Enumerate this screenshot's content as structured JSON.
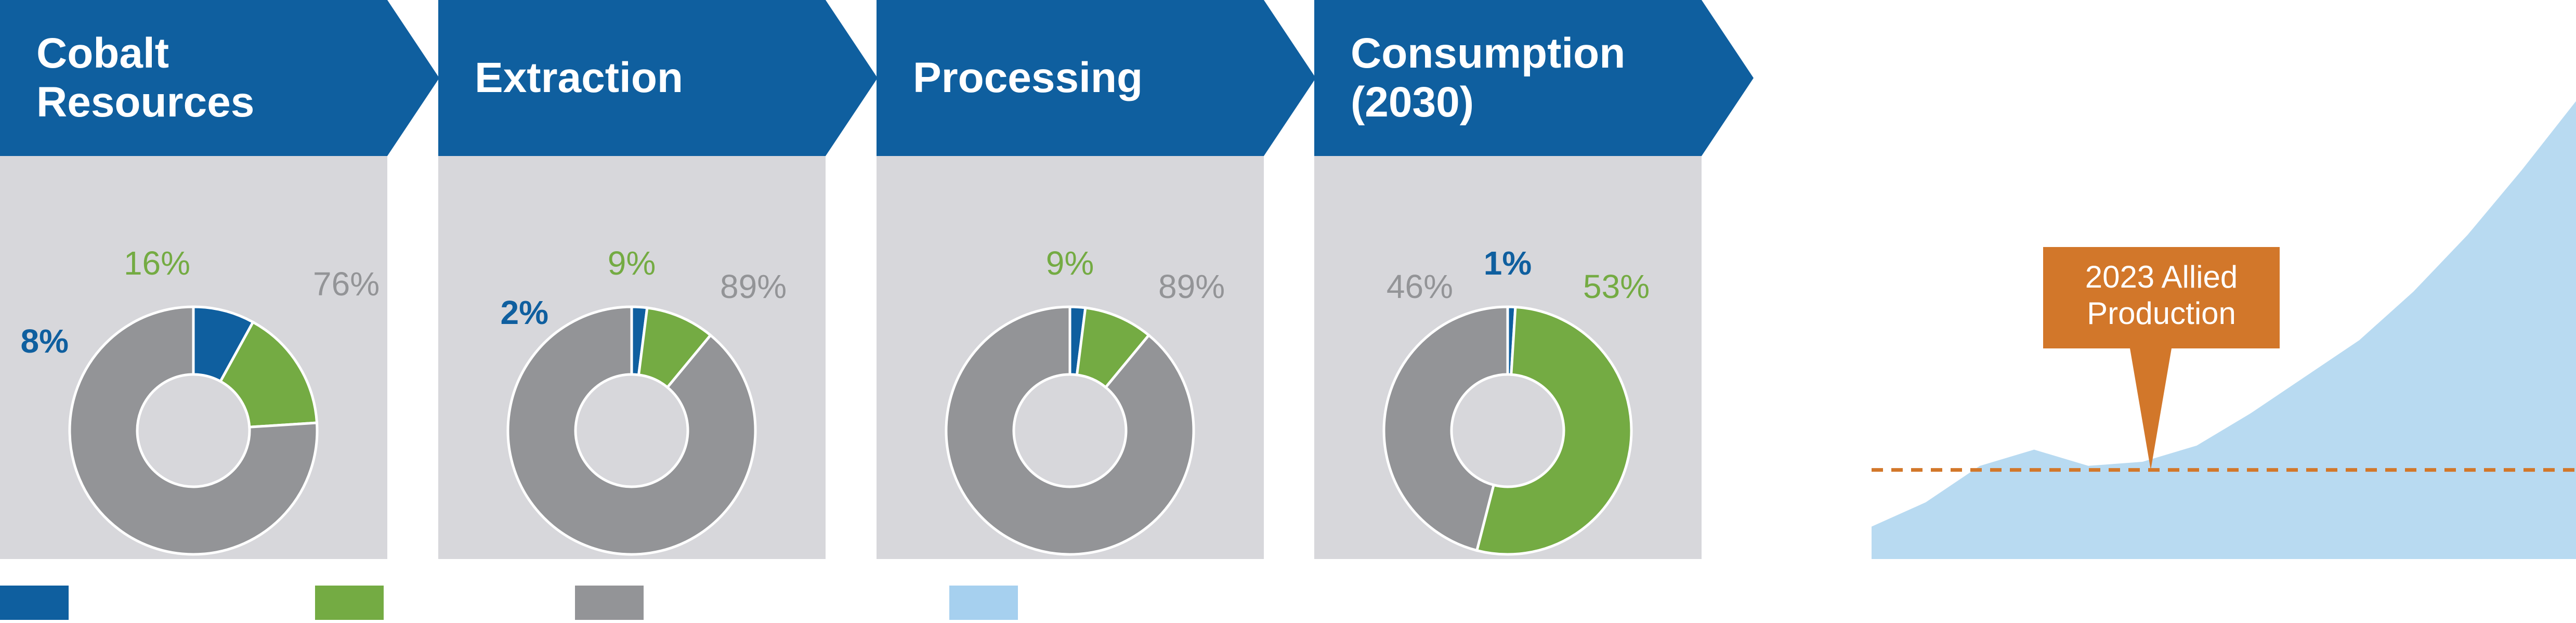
{
  "colors": {
    "header_blue": "#0f5f9f",
    "panel_gray": "#d7d7db",
    "donut_blue": "#0f5f9f",
    "donut_green": "#74ab43",
    "donut_gray": "#939497",
    "area_light_blue": "#b8daf1",
    "callout_orange": "#d2772a"
  },
  "chart_data": [
    {
      "type": "pie",
      "title": "Cobalt\nResources",
      "series": [
        {
          "label": "8%",
          "value": 8,
          "color": "#0f5f9f"
        },
        {
          "label": "16%",
          "value": 16,
          "color": "#74ab43"
        },
        {
          "label": "76%",
          "value": 76,
          "color": "#939497"
        }
      ]
    },
    {
      "type": "pie",
      "title": "Extraction",
      "series": [
        {
          "label": "2%",
          "value": 2,
          "color": "#0f5f9f"
        },
        {
          "label": "9%",
          "value": 9,
          "color": "#74ab43"
        },
        {
          "label": "89%",
          "value": 89,
          "color": "#939497"
        }
      ]
    },
    {
      "type": "pie",
      "title": "Processing",
      "series": [
        {
          "label": "",
          "value": 2,
          "color": "#0f5f9f"
        },
        {
          "label": "9%",
          "value": 9,
          "color": "#74ab43"
        },
        {
          "label": "89%",
          "value": 89,
          "color": "#939497"
        }
      ]
    },
    {
      "type": "pie",
      "title": "Consumption\n(2030)",
      "series": [
        {
          "label": "1%",
          "value": 1,
          "color": "#0f5f9f"
        },
        {
          "label": "53%",
          "value": 53,
          "color": "#74ab43"
        },
        {
          "label": "46%",
          "value": 46,
          "color": "#939497"
        }
      ]
    },
    {
      "type": "area",
      "x": [
        0,
        1,
        2,
        3,
        4,
        5,
        6,
        7,
        8,
        9,
        10,
        11,
        12,
        13
      ],
      "values": [
        8,
        14,
        23,
        27,
        23,
        24,
        28,
        36,
        45,
        54,
        66,
        80,
        96,
        113
      ],
      "ylim": [
        0,
        120
      ],
      "reference_line": {
        "value": 22,
        "label": "2023 Allied\nProduction",
        "color": "#d2772a"
      }
    }
  ],
  "legend": [
    {
      "color": "#0f5f9f"
    },
    {
      "color": "#74ab43"
    },
    {
      "color": "#939497"
    },
    {
      "color": "#a6d0ef"
    }
  ]
}
